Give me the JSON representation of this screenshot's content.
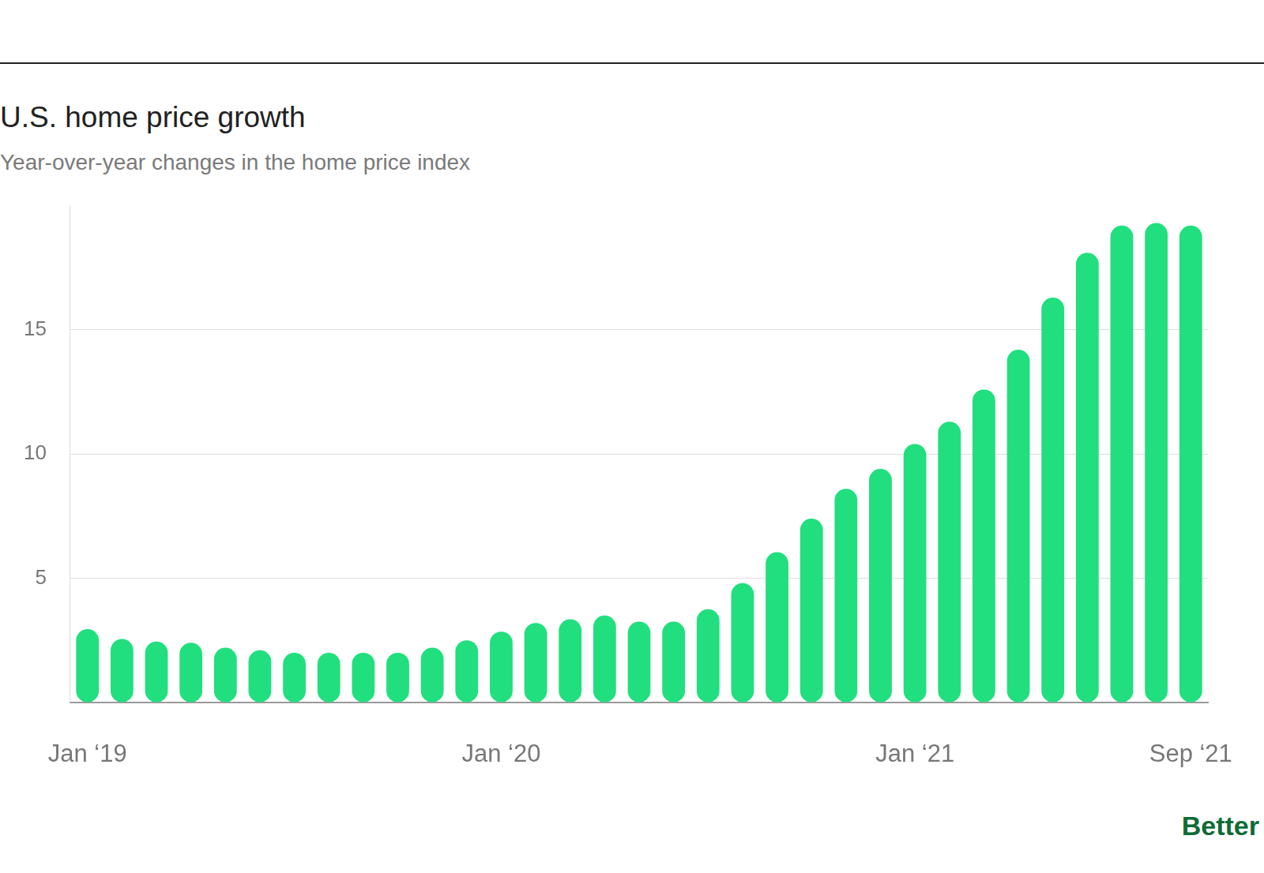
{
  "chart_data": {
    "type": "bar",
    "title": "U.S. home price growth",
    "subtitle": "Year-over-year changes in the home price index",
    "annotation": "Better",
    "categories": [
      "Jan ‘19",
      null,
      null,
      null,
      null,
      null,
      null,
      null,
      null,
      null,
      null,
      null,
      "Jan ‘20",
      null,
      null,
      null,
      null,
      null,
      null,
      null,
      null,
      null,
      null,
      null,
      "Jan ‘21",
      null,
      null,
      null,
      null,
      null,
      null,
      null,
      "Sep ‘21"
    ],
    "values": [
      2.95,
      2.55,
      2.45,
      2.4,
      2.2,
      2.1,
      2.0,
      2.0,
      2.0,
      2.0,
      2.2,
      2.5,
      2.85,
      3.2,
      3.35,
      3.5,
      3.25,
      3.25,
      3.75,
      4.8,
      6.05,
      7.4,
      8.6,
      9.4,
      10.4,
      11.3,
      12.6,
      14.2,
      16.3,
      18.1,
      19.2,
      19.3,
      19.2
    ],
    "color": "#21df7e",
    "ylim": [
      0,
      20
    ],
    "yticks": [
      5,
      10,
      15
    ],
    "grid": true
  }
}
